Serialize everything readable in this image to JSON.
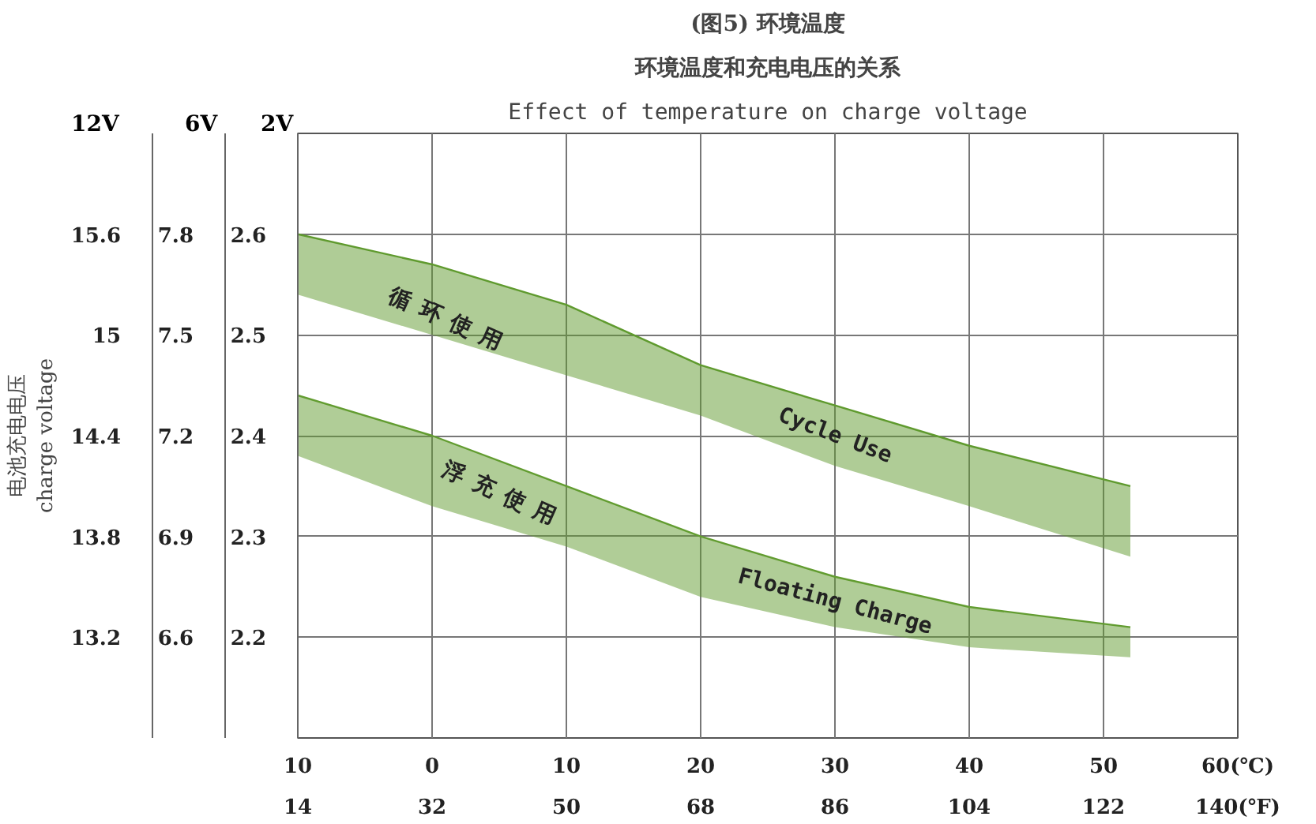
{
  "chart_data": {
    "type": "line",
    "title": "(图5) 环境温度",
    "subtitle": "环境温度和充电电压的关系",
    "ylabel": "2V",
    "y2label": "6V",
    "y3label": "12V",
    "x": [
      -10,
      0,
      10,
      20,
      30,
      40,
      52
    ],
    "series": [
      {
        "name": "Cycle Use",
        "color": "#5f9a2e",
        "values": [
          2.6,
          2.57,
          2.53,
          2.47,
          2.43,
          2.39,
          2.35
        ],
        "upper": [
          2.6,
          2.57,
          2.53,
          2.47,
          2.43,
          2.39,
          2.35
        ],
        "lower": [
          2.54,
          2.5,
          2.46,
          2.42,
          2.37,
          2.33,
          2.28
        ]
      },
      {
        "name": "Floating Charge",
        "color": "#629c30",
        "values": [
          2.44,
          2.4,
          2.35,
          2.3,
          2.26,
          2.23,
          2.21
        ],
        "upper": [
          2.44,
          2.4,
          2.35,
          2.3,
          2.26,
          2.23,
          2.21
        ],
        "lower": [
          2.38,
          2.33,
          2.29,
          2.24,
          2.21,
          2.19,
          2.18
        ]
      }
    ],
    "annotations": [
      "Effect of temperature on charge voltage",
      "电池充电电压\ncharge voltage",
      "循环使用",
      "浮充使用"
    ],
    "xlim": [
      -10,
      60
    ],
    "xticks": [
      {
        "value": -10,
        "label": "10"
      },
      0,
      10,
      20,
      30,
      40,
      50,
      {
        "value": 60,
        "label": "60(℃)"
      }
    ],
    "x2lim": [
      14,
      140
    ],
    "x2ticks": [
      14,
      32,
      50,
      68,
      86,
      104,
      122,
      {
        "value": 140,
        "label": "140(℉)"
      }
    ],
    "ylim": [
      2.1,
      2.7
    ],
    "yticks": [
      2.2,
      2.3,
      2.4,
      2.5,
      2.6
    ],
    "y2lim": [
      6.3,
      8.1
    ],
    "y2ticks": [
      6.6,
      6.9,
      7.2,
      7.5,
      7.8
    ],
    "y3lim": [
      12.6,
      16.2
    ],
    "y3ticks": [
      13.2,
      13.8,
      14.4,
      15,
      15.6
    ],
    "grid": true,
    "legend": false
  }
}
